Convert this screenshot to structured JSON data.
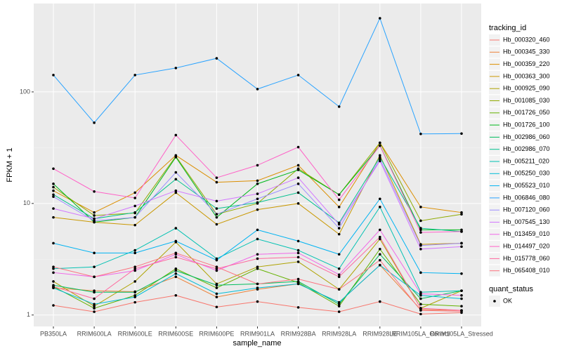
{
  "chart_data": {
    "type": "line",
    "x_label": "sample_name",
    "y_label": "FPKM + 1",
    "categories": [
      "PB350LA",
      "RRIM600LA",
      "RRIM600LE",
      "RRIM600SE",
      "RRIM600PE",
      "RRIM901LA",
      "RRIM928BA",
      "RRIM928LA",
      "RRIM928LE",
      "RRIM105LA_Control",
      "RRIM105LA_Stressed"
    ],
    "ylim": [
      0.79,
      620
    ],
    "ylog": true,
    "grid": true,
    "yticks": [
      1,
      10,
      100
    ],
    "legend_title": "tracking_id",
    "point_color": "#000000",
    "status_legend_title": "quant_status",
    "status_levels": [
      "OK"
    ],
    "series": [
      {
        "name": "Hb_000320_460",
        "color": "#F8766D",
        "values": [
          1.22,
          1.07,
          1.3,
          1.5,
          1.18,
          1.32,
          1.17,
          1.07,
          1.32,
          1.02,
          1.05
        ]
      },
      {
        "name": "Hb_000345_330",
        "color": "#EC8239",
        "values": [
          1.75,
          1.65,
          1.62,
          2.2,
          1.45,
          1.7,
          1.9,
          1.3,
          2.8,
          1.12,
          1.1
        ]
      },
      {
        "name": "Hb_000359_220",
        "color": "#DB8E00",
        "values": [
          13,
          8.3,
          12.5,
          27,
          15.5,
          16,
          22,
          9.3,
          35,
          9.3,
          8.3
        ]
      },
      {
        "name": "Hb_000363_300",
        "color": "#C99800",
        "values": [
          7.5,
          6.8,
          6.4,
          12.5,
          6.5,
          8.8,
          10,
          5.3,
          27,
          4.3,
          4.4
        ]
      },
      {
        "name": "Hb_000925_090",
        "color": "#AEA200",
        "values": [
          2.0,
          1.2,
          2.0,
          4.5,
          1.9,
          2.7,
          3.0,
          1.7,
          4.8,
          1.15,
          1.65
        ]
      },
      {
        "name": "Hb_001085_030",
        "color": "#8FAA00",
        "values": [
          14,
          7.8,
          8.2,
          26.5,
          8,
          10,
          20.5,
          12,
          35,
          7,
          8
        ]
      },
      {
        "name": "Hb_001726_050",
        "color": "#64B200",
        "values": [
          1.8,
          1.15,
          1.5,
          2.6,
          1.75,
          2.6,
          1.95,
          1.2,
          3.9,
          1.25,
          1.2
        ]
      },
      {
        "name": "Hb_001726_100",
        "color": "#00B81B",
        "values": [
          15,
          6.8,
          7.5,
          26,
          7.5,
          15,
          20,
          12,
          33,
          5.8,
          5.8
        ]
      },
      {
        "name": "Hb_002986_060",
        "color": "#00BD5C",
        "values": [
          1.85,
          1.6,
          1.6,
          2.5,
          1.85,
          1.9,
          2.0,
          1.25,
          3.5,
          1.4,
          1.65
        ]
      },
      {
        "name": "Hb_002986_070",
        "color": "#00C08D",
        "values": [
          12,
          7.3,
          8.3,
          16.5,
          9,
          10.2,
          12.5,
          6.7,
          26,
          6,
          5.6
        ]
      },
      {
        "name": "Hb_005211_020",
        "color": "#00C1B2",
        "values": [
          2.6,
          2.7,
          3.8,
          6,
          3.2,
          4.8,
          3.8,
          2.6,
          9.3,
          1.6,
          1.65
        ]
      },
      {
        "name": "Hb_005250_030",
        "color": "#00BCD6",
        "values": [
          1.75,
          1.25,
          1.45,
          2.35,
          1.55,
          1.75,
          1.9,
          1.3,
          2.8,
          1.5,
          1.4
        ]
      },
      {
        "name": "Hb_005523_010",
        "color": "#00B3F2",
        "values": [
          4.4,
          3.6,
          3.6,
          4.6,
          3.1,
          5.8,
          4.6,
          3.5,
          11,
          2.4,
          2.35
        ]
      },
      {
        "name": "Hb_006846_080",
        "color": "#29A3FF",
        "values": [
          141.6,
          52.9,
          141.6,
          163.7,
          200,
          106,
          141.6,
          73.8,
          457,
          42,
          42.3
        ]
      },
      {
        "name": "Hb_007120_060",
        "color": "#9C8DFF",
        "values": [
          11.5,
          7,
          7.5,
          19,
          8,
          11,
          15,
          6,
          25,
          4.2,
          4.4
        ]
      },
      {
        "name": "Hb_007545_130",
        "color": "#D277FF",
        "values": [
          9,
          7.3,
          9.5,
          13,
          10.5,
          12.2,
          17,
          6.5,
          24,
          3.9,
          4.1
        ]
      },
      {
        "name": "Hb_013459_010",
        "color": "#F166E8",
        "values": [
          2.4,
          2.2,
          2.5,
          3.5,
          2.5,
          3.5,
          3.6,
          2.3,
          5.8,
          1.55,
          1.5
        ]
      },
      {
        "name": "Hb_014497_020",
        "color": "#FF61C7",
        "values": [
          20.5,
          12.8,
          11.2,
          41,
          17,
          22,
          32,
          10.8,
          33,
          5.5,
          5.6
        ]
      },
      {
        "name": "Hb_015778_060",
        "color": "#FF689E",
        "values": [
          1.8,
          1.4,
          2.6,
          3.3,
          2.6,
          3.2,
          3.3,
          2.2,
          5,
          1.15,
          1.1
        ]
      },
      {
        "name": "Hb_065408_010",
        "color": "#FC717F",
        "values": [
          2.7,
          2.2,
          2.7,
          3.6,
          2.7,
          1.9,
          2.1,
          1.7,
          3.1,
          1.1,
          1.08
        ]
      }
    ]
  }
}
